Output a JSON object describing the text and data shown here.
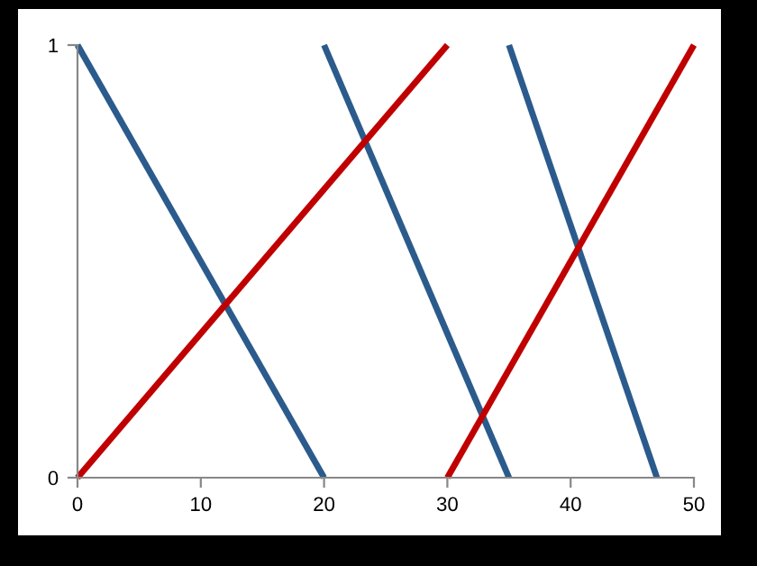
{
  "chart_data": {
    "type": "line",
    "series": [
      {
        "color": "#2b5b8c",
        "x": [
          0,
          20
        ],
        "values": [
          1,
          0
        ]
      },
      {
        "color": "#2b5b8c",
        "x": [
          20,
          35
        ],
        "values": [
          1,
          0
        ]
      },
      {
        "color": "#2b5b8c",
        "x": [
          35,
          47
        ],
        "values": [
          1,
          0
        ]
      },
      {
        "color": "#c00000",
        "x": [
          0,
          30
        ],
        "values": [
          0,
          1
        ]
      },
      {
        "color": "#c00000",
        "x": [
          30,
          50
        ],
        "values": [
          0,
          1
        ]
      }
    ],
    "xlim": [
      0,
      50
    ],
    "xticks": [
      0,
      10,
      20,
      30,
      40,
      50
    ],
    "ylim": [
      0,
      1
    ],
    "yticks": [
      0,
      1
    ],
    "grid": false,
    "legend": false,
    "marker": "none",
    "line_style": "solid"
  }
}
